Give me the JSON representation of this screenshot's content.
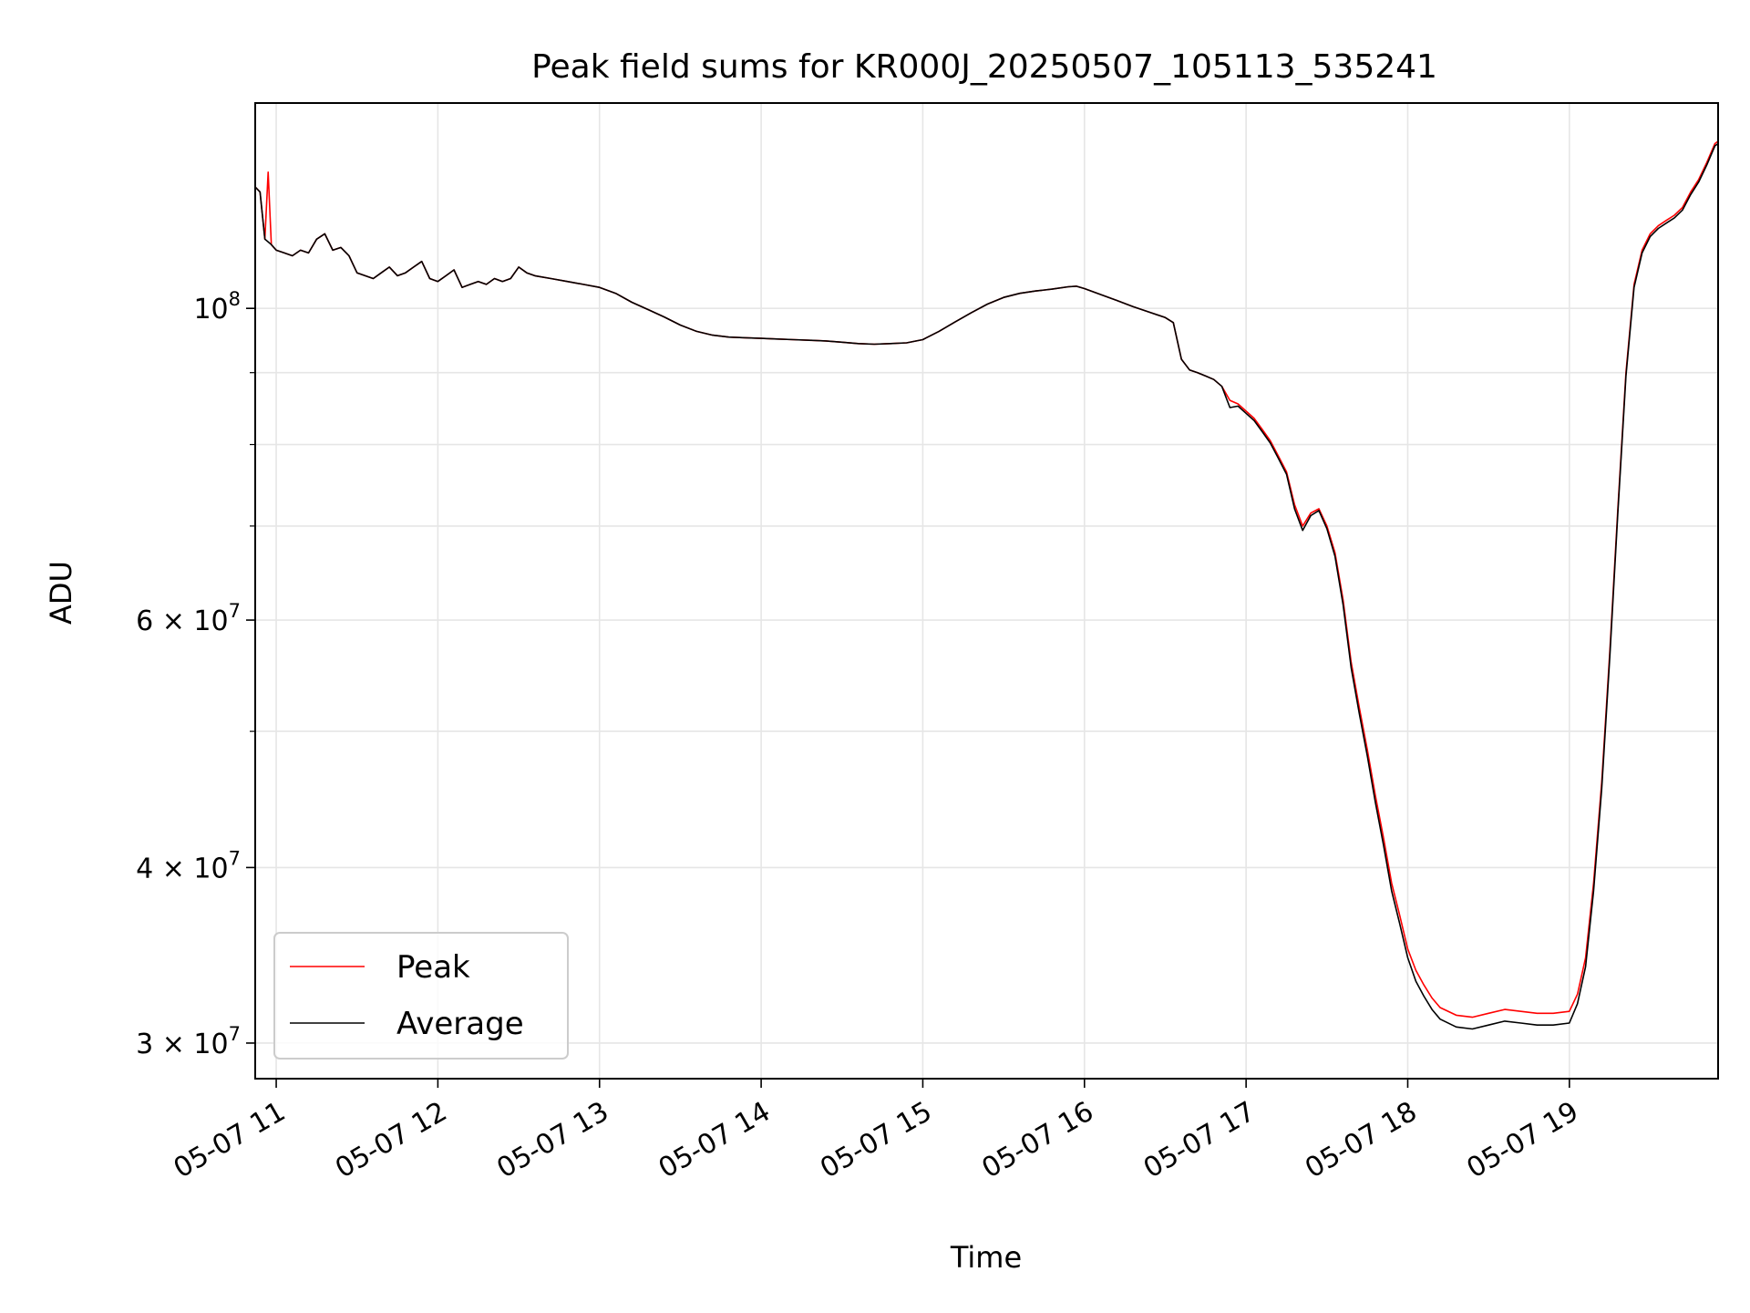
{
  "chart_data": {
    "type": "line",
    "title": "Peak field sums for KR000J_20250507_105113_535241",
    "xlabel": "Time",
    "ylabel": "ADU",
    "yscale": "log",
    "xlim": [
      10.87,
      19.92
    ],
    "ylim": [
      28300000,
      140000000
    ],
    "grid": true,
    "legend_position": "lower-left",
    "x_ticks": [
      {
        "value": 11,
        "label": "05-07 11"
      },
      {
        "value": 12,
        "label": "05-07 12"
      },
      {
        "value": 13,
        "label": "05-07 13"
      },
      {
        "value": 14,
        "label": "05-07 14"
      },
      {
        "value": 15,
        "label": "05-07 15"
      },
      {
        "value": 16,
        "label": "05-07 16"
      },
      {
        "value": 17,
        "label": "05-07 17"
      },
      {
        "value": 18,
        "label": "05-07 18"
      },
      {
        "value": 19,
        "label": "05-07 19"
      }
    ],
    "y_ticks": [
      {
        "value": 30000000,
        "base": "3",
        "exp": "7"
      },
      {
        "value": 40000000,
        "base": "4",
        "exp": "7"
      },
      {
        "value": 60000000,
        "base": "6",
        "exp": "7"
      },
      {
        "value": 100000000,
        "base": "",
        "exp": "8"
      }
    ],
    "y_minor_ticks": [
      50000000,
      70000000,
      80000000,
      90000000
    ],
    "series": [
      {
        "name": "Peak",
        "color": "#ff0000",
        "points": [
          [
            10.87,
            122000000
          ],
          [
            10.9,
            121000000
          ],
          [
            10.93,
            112000000
          ],
          [
            10.95,
            125000000
          ],
          [
            10.97,
            111000000
          ],
          [
            11.0,
            110000000
          ],
          [
            11.05,
            109500000
          ],
          [
            11.1,
            109000000
          ],
          [
            11.15,
            110000000
          ],
          [
            11.2,
            109500000
          ],
          [
            11.25,
            112000000
          ],
          [
            11.3,
            113000000
          ],
          [
            11.35,
            110000000
          ],
          [
            11.4,
            110500000
          ],
          [
            11.45,
            109000000
          ],
          [
            11.5,
            106000000
          ],
          [
            11.55,
            105500000
          ],
          [
            11.6,
            105000000
          ],
          [
            11.65,
            106000000
          ],
          [
            11.7,
            107000000
          ],
          [
            11.75,
            105500000
          ],
          [
            11.8,
            106000000
          ],
          [
            11.85,
            107000000
          ],
          [
            11.9,
            108000000
          ],
          [
            11.95,
            105000000
          ],
          [
            12.0,
            104500000
          ],
          [
            12.05,
            105500000
          ],
          [
            12.1,
            106500000
          ],
          [
            12.15,
            103500000
          ],
          [
            12.2,
            104000000
          ],
          [
            12.25,
            104500000
          ],
          [
            12.3,
            104000000
          ],
          [
            12.35,
            105000000
          ],
          [
            12.4,
            104500000
          ],
          [
            12.45,
            105000000
          ],
          [
            12.5,
            107000000
          ],
          [
            12.55,
            106000000
          ],
          [
            12.6,
            105500000
          ],
          [
            12.7,
            105000000
          ],
          [
            12.8,
            104500000
          ],
          [
            12.9,
            104000000
          ],
          [
            13.0,
            103500000
          ],
          [
            13.1,
            102500000
          ],
          [
            13.2,
            101000000
          ],
          [
            13.3,
            99800000
          ],
          [
            13.4,
            98600000
          ],
          [
            13.5,
            97300000
          ],
          [
            13.6,
            96300000
          ],
          [
            13.7,
            95700000
          ],
          [
            13.8,
            95400000
          ],
          [
            13.9,
            95300000
          ],
          [
            14.0,
            95200000
          ],
          [
            14.1,
            95100000
          ],
          [
            14.2,
            95000000
          ],
          [
            14.3,
            94900000
          ],
          [
            14.4,
            94800000
          ],
          [
            14.5,
            94600000
          ],
          [
            14.6,
            94400000
          ],
          [
            14.7,
            94300000
          ],
          [
            14.8,
            94400000
          ],
          [
            14.9,
            94500000
          ],
          [
            15.0,
            95000000
          ],
          [
            15.1,
            96300000
          ],
          [
            15.2,
            97800000
          ],
          [
            15.3,
            99300000
          ],
          [
            15.4,
            100700000
          ],
          [
            15.5,
            101800000
          ],
          [
            15.6,
            102500000
          ],
          [
            15.7,
            102900000
          ],
          [
            15.8,
            103200000
          ],
          [
            15.9,
            103600000
          ],
          [
            15.95,
            103700000
          ],
          [
            16.0,
            103300000
          ],
          [
            16.1,
            102300000
          ],
          [
            16.2,
            101300000
          ],
          [
            16.3,
            100300000
          ],
          [
            16.4,
            99400000
          ],
          [
            16.5,
            98500000
          ],
          [
            16.55,
            97700000
          ],
          [
            16.6,
            92000000
          ],
          [
            16.65,
            90400000
          ],
          [
            16.7,
            90000000
          ],
          [
            16.75,
            89500000
          ],
          [
            16.8,
            89000000
          ],
          [
            16.85,
            88000000
          ],
          [
            16.9,
            86000000
          ],
          [
            16.95,
            85500000
          ],
          [
            17.0,
            84500000
          ],
          [
            17.05,
            83500000
          ],
          [
            17.1,
            82000000
          ],
          [
            17.15,
            80500000
          ],
          [
            17.2,
            78500000
          ],
          [
            17.25,
            76500000
          ],
          [
            17.3,
            72500000
          ],
          [
            17.35,
            70000000
          ],
          [
            17.4,
            71500000
          ],
          [
            17.45,
            72000000
          ],
          [
            17.5,
            70000000
          ],
          [
            17.55,
            67000000
          ],
          [
            17.6,
            62000000
          ],
          [
            17.65,
            56000000
          ],
          [
            17.7,
            52000000
          ],
          [
            17.75,
            48500000
          ],
          [
            17.8,
            45000000
          ],
          [
            17.85,
            42000000
          ],
          [
            17.9,
            39000000
          ],
          [
            17.95,
            37000000
          ],
          [
            18.0,
            35000000
          ],
          [
            18.05,
            33800000
          ],
          [
            18.1,
            33000000
          ],
          [
            18.15,
            32300000
          ],
          [
            18.2,
            31800000
          ],
          [
            18.3,
            31400000
          ],
          [
            18.4,
            31300000
          ],
          [
            18.5,
            31500000
          ],
          [
            18.6,
            31700000
          ],
          [
            18.7,
            31600000
          ],
          [
            18.8,
            31500000
          ],
          [
            18.9,
            31500000
          ],
          [
            19.0,
            31600000
          ],
          [
            19.05,
            32500000
          ],
          [
            19.1,
            34500000
          ],
          [
            19.15,
            39000000
          ],
          [
            19.2,
            46000000
          ],
          [
            19.25,
            57000000
          ],
          [
            19.3,
            72000000
          ],
          [
            19.35,
            90000000
          ],
          [
            19.4,
            104000000
          ],
          [
            19.45,
            110000000
          ],
          [
            19.5,
            113000000
          ],
          [
            19.55,
            114500000
          ],
          [
            19.6,
            115500000
          ],
          [
            19.65,
            116500000
          ],
          [
            19.7,
            118000000
          ],
          [
            19.75,
            121000000
          ],
          [
            19.8,
            123500000
          ],
          [
            19.85,
            127000000
          ],
          [
            19.9,
            131000000
          ],
          [
            19.92,
            131500000
          ]
        ]
      },
      {
        "name": "Average",
        "color": "#000000",
        "points": [
          [
            10.87,
            122000000
          ],
          [
            10.9,
            121000000
          ],
          [
            10.93,
            112000000
          ],
          [
            10.95,
            111500000
          ],
          [
            10.97,
            111000000
          ],
          [
            11.0,
            110000000
          ],
          [
            11.05,
            109500000
          ],
          [
            11.1,
            109000000
          ],
          [
            11.15,
            110000000
          ],
          [
            11.2,
            109500000
          ],
          [
            11.25,
            112000000
          ],
          [
            11.3,
            113000000
          ],
          [
            11.35,
            110000000
          ],
          [
            11.4,
            110500000
          ],
          [
            11.45,
            109000000
          ],
          [
            11.5,
            106000000
          ],
          [
            11.55,
            105500000
          ],
          [
            11.6,
            105000000
          ],
          [
            11.65,
            106000000
          ],
          [
            11.7,
            107000000
          ],
          [
            11.75,
            105500000
          ],
          [
            11.8,
            106000000
          ],
          [
            11.85,
            107000000
          ],
          [
            11.9,
            108000000
          ],
          [
            11.95,
            105000000
          ],
          [
            12.0,
            104500000
          ],
          [
            12.05,
            105500000
          ],
          [
            12.1,
            106500000
          ],
          [
            12.15,
            103500000
          ],
          [
            12.2,
            104000000
          ],
          [
            12.25,
            104500000
          ],
          [
            12.3,
            104000000
          ],
          [
            12.35,
            105000000
          ],
          [
            12.4,
            104500000
          ],
          [
            12.45,
            105000000
          ],
          [
            12.5,
            107000000
          ],
          [
            12.55,
            106000000
          ],
          [
            12.6,
            105500000
          ],
          [
            12.7,
            105000000
          ],
          [
            12.8,
            104500000
          ],
          [
            12.9,
            104000000
          ],
          [
            13.0,
            103500000
          ],
          [
            13.1,
            102500000
          ],
          [
            13.2,
            101000000
          ],
          [
            13.3,
            99800000
          ],
          [
            13.4,
            98600000
          ],
          [
            13.5,
            97300000
          ],
          [
            13.6,
            96300000
          ],
          [
            13.7,
            95700000
          ],
          [
            13.8,
            95400000
          ],
          [
            13.9,
            95300000
          ],
          [
            14.0,
            95200000
          ],
          [
            14.1,
            95100000
          ],
          [
            14.2,
            95000000
          ],
          [
            14.3,
            94900000
          ],
          [
            14.4,
            94800000
          ],
          [
            14.5,
            94600000
          ],
          [
            14.6,
            94400000
          ],
          [
            14.7,
            94300000
          ],
          [
            14.8,
            94400000
          ],
          [
            14.9,
            94500000
          ],
          [
            15.0,
            95000000
          ],
          [
            15.1,
            96300000
          ],
          [
            15.2,
            97800000
          ],
          [
            15.3,
            99300000
          ],
          [
            15.4,
            100700000
          ],
          [
            15.5,
            101800000
          ],
          [
            15.6,
            102500000
          ],
          [
            15.7,
            102900000
          ],
          [
            15.8,
            103200000
          ],
          [
            15.9,
            103600000
          ],
          [
            15.95,
            103700000
          ],
          [
            16.0,
            103300000
          ],
          [
            16.1,
            102300000
          ],
          [
            16.2,
            101300000
          ],
          [
            16.3,
            100300000
          ],
          [
            16.4,
            99400000
          ],
          [
            16.5,
            98500000
          ],
          [
            16.55,
            97700000
          ],
          [
            16.6,
            92000000
          ],
          [
            16.65,
            90400000
          ],
          [
            16.7,
            90000000
          ],
          [
            16.75,
            89500000
          ],
          [
            16.8,
            89000000
          ],
          [
            16.85,
            88000000
          ],
          [
            16.9,
            85000000
          ],
          [
            16.95,
            85200000
          ],
          [
            17.0,
            84200000
          ],
          [
            17.05,
            83200000
          ],
          [
            17.1,
            81700000
          ],
          [
            17.15,
            80200000
          ],
          [
            17.2,
            78200000
          ],
          [
            17.25,
            76200000
          ],
          [
            17.3,
            72000000
          ],
          [
            17.35,
            69500000
          ],
          [
            17.4,
            71200000
          ],
          [
            17.45,
            71800000
          ],
          [
            17.5,
            69700000
          ],
          [
            17.55,
            66600000
          ],
          [
            17.6,
            61500000
          ],
          [
            17.65,
            55500000
          ],
          [
            17.7,
            51500000
          ],
          [
            17.75,
            48000000
          ],
          [
            17.8,
            44500000
          ],
          [
            17.85,
            41500000
          ],
          [
            17.9,
            38500000
          ],
          [
            17.95,
            36500000
          ],
          [
            18.0,
            34500000
          ],
          [
            18.05,
            33200000
          ],
          [
            18.1,
            32400000
          ],
          [
            18.15,
            31700000
          ],
          [
            18.2,
            31200000
          ],
          [
            18.3,
            30800000
          ],
          [
            18.4,
            30700000
          ],
          [
            18.5,
            30900000
          ],
          [
            18.6,
            31100000
          ],
          [
            18.7,
            31000000
          ],
          [
            18.8,
            30900000
          ],
          [
            18.9,
            30900000
          ],
          [
            19.0,
            31000000
          ],
          [
            19.05,
            32000000
          ],
          [
            19.1,
            34000000
          ],
          [
            19.15,
            38500000
          ],
          [
            19.2,
            45500000
          ],
          [
            19.25,
            56500000
          ],
          [
            19.3,
            71500000
          ],
          [
            19.35,
            89500000
          ],
          [
            19.4,
            103500000
          ],
          [
            19.45,
            109500000
          ],
          [
            19.5,
            112500000
          ],
          [
            19.55,
            114000000
          ],
          [
            19.6,
            115000000
          ],
          [
            19.65,
            116000000
          ],
          [
            19.7,
            117500000
          ],
          [
            19.75,
            120500000
          ],
          [
            19.8,
            123000000
          ],
          [
            19.85,
            126500000
          ],
          [
            19.9,
            130500000
          ],
          [
            19.92,
            131000000
          ]
        ]
      }
    ]
  }
}
